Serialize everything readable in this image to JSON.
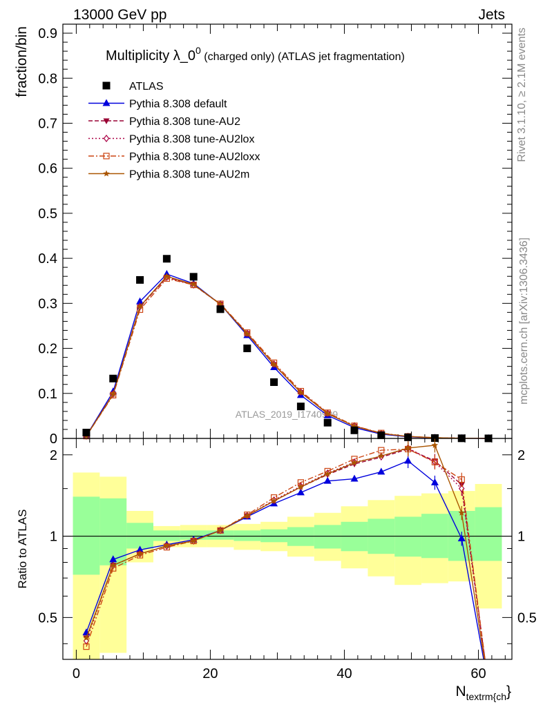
{
  "header": {
    "left": "13000 GeV pp",
    "right": "Jets"
  },
  "side": {
    "top": "Rivet 3.1.10, ≥ 2.1M events",
    "bottom": "mcplots.cern.ch [arXiv:1306.3436]"
  },
  "watermark": "ATLAS_2019_I1740909",
  "colors": {
    "atlas": "#000000",
    "default": "#0000dd",
    "au2": "#990033",
    "au2lox": "#aa0044",
    "au2loxx": "#cc4411",
    "au2m": "#aa5500",
    "band_inner": "#99ff99",
    "band_outer": "#ffff99"
  },
  "chart_data": [
    {
      "type": "scatter",
      "title": "Multiplicity λ_0",
      "title_sup": "0",
      "title_rest": " (charged only) (ATLAS jet fragmentation)",
      "ylabel": "fraction/bin",
      "ylim": [
        0,
        0.92
      ],
      "yticks": [
        "0",
        "0.1",
        "0.2",
        "0.3",
        "0.4",
        "0.5",
        "0.6",
        "0.7",
        "0.8",
        "0.9"
      ],
      "x": [
        1.5,
        5.5,
        9.5,
        13.5,
        17.5,
        21.5,
        25.5,
        29.5,
        33.5,
        37.5,
        41.5,
        45.5,
        49.5,
        53.5,
        57.5,
        61.5
      ],
      "legend_position": "top-left",
      "series": [
        {
          "name": "ATLAS",
          "key": "atlas",
          "values": [
            0.013,
            0.133,
            0.352,
            0.399,
            0.359,
            0.287,
            0.2,
            0.125,
            0.071,
            0.035,
            0.018,
            0.007,
            0.0025,
            0.0008,
            0.0003,
            0.0001
          ]
        },
        {
          "name": "Pythia 8.308 default",
          "key": "default",
          "values": [
            0.006,
            0.104,
            0.304,
            0.365,
            0.344,
            0.298,
            0.229,
            0.158,
            0.096,
            0.051,
            0.024,
            0.0095,
            0.0035,
            0.0011,
            0.0003,
            0.0001
          ]
        },
        {
          "name": "Pythia 8.308 tune-AU2",
          "key": "au2",
          "values": [
            0.0055,
            0.098,
            0.292,
            0.358,
            0.341,
            0.298,
            0.233,
            0.164,
            0.102,
            0.055,
            0.027,
            0.011,
            0.0043,
            0.0015,
            0.0004,
            0.0001
          ]
        },
        {
          "name": "Pythia 8.308 tune-AU2lox",
          "key": "au2lox",
          "values": [
            0.0055,
            0.099,
            0.293,
            0.358,
            0.341,
            0.298,
            0.233,
            0.165,
            0.103,
            0.056,
            0.028,
            0.011,
            0.0044,
            0.0015,
            0.0004,
            0.0001
          ]
        },
        {
          "name": "Pythia 8.308 tune-AU2loxx",
          "key": "au2loxx",
          "values": [
            0.0052,
            0.096,
            0.286,
            0.355,
            0.341,
            0.299,
            0.235,
            0.168,
            0.105,
            0.057,
            0.028,
            0.012,
            0.0045,
            0.0015,
            0.0004,
            0.0001
          ]
        },
        {
          "name": "Pythia 8.308 tune-AU2m",
          "key": "au2m",
          "values": [
            0.0055,
            0.098,
            0.293,
            0.36,
            0.342,
            0.298,
            0.232,
            0.164,
            0.102,
            0.055,
            0.027,
            0.011,
            0.0043,
            0.0015,
            0.0004,
            0.0001
          ]
        }
      ]
    },
    {
      "type": "line",
      "ylabel": "Ratio to ATLAS",
      "xlabel": "N",
      "xlabel_sub": "textrm{ch",
      "xlabel_tail": "}",
      "ylim": [
        0.35,
        2.3
      ],
      "xlim": [
        -2,
        65
      ],
      "yticks": [
        "0.5",
        "1",
        "2"
      ],
      "xticks": [
        "0",
        "20",
        "40",
        "60"
      ],
      "x": [
        1.5,
        5.5,
        9.5,
        13.5,
        17.5,
        21.5,
        25.5,
        29.5,
        33.5,
        37.5,
        41.5,
        45.5,
        49.5,
        53.5,
        57.5,
        61.5
      ],
      "bin_edges": [
        -0.5,
        3.5,
        7.5,
        11.5,
        15.5,
        19.5,
        23.5,
        27.5,
        31.5,
        35.5,
        39.5,
        43.5,
        47.5,
        51.5,
        55.5,
        59.5,
        63.5
      ],
      "band_inner": [
        [
          0.72,
          1.4
        ],
        [
          0.78,
          1.38
        ],
        [
          0.9,
          1.12
        ],
        [
          0.96,
          1.05
        ],
        [
          0.97,
          1.05
        ],
        [
          0.97,
          1.05
        ],
        [
          0.96,
          1.05
        ],
        [
          0.95,
          1.06
        ],
        [
          0.92,
          1.08
        ],
        [
          0.9,
          1.1
        ],
        [
          0.88,
          1.13
        ],
        [
          0.86,
          1.16
        ],
        [
          0.84,
          1.18
        ],
        [
          0.83,
          1.21
        ],
        [
          0.81,
          1.24
        ],
        [
          0.81,
          1.28
        ]
      ],
      "band_outer": [
        [
          0.35,
          1.72
        ],
        [
          0.37,
          1.66
        ],
        [
          0.8,
          1.24
        ],
        [
          0.91,
          1.09
        ],
        [
          0.91,
          1.1
        ],
        [
          0.91,
          1.1
        ],
        [
          0.89,
          1.11
        ],
        [
          0.88,
          1.13
        ],
        [
          0.84,
          1.18
        ],
        [
          0.81,
          1.22
        ],
        [
          0.76,
          1.29
        ],
        [
          0.71,
          1.36
        ],
        [
          0.66,
          1.41
        ],
        [
          0.67,
          1.44
        ],
        [
          0.68,
          1.47
        ],
        [
          0.54,
          1.56
        ]
      ],
      "series": [
        {
          "name": "Pythia 8.308 default",
          "key": "default",
          "values": [
            0.44,
            0.82,
            0.89,
            0.93,
            0.97,
            1.05,
            1.18,
            1.32,
            1.45,
            1.6,
            1.63,
            1.73,
            1.9,
            1.58,
            0.98,
            0.22
          ]
        },
        {
          "name": "Pythia 8.308 tune-AU2",
          "key": "au2",
          "values": [
            0.42,
            0.78,
            0.86,
            0.92,
            0.96,
            1.05,
            1.19,
            1.35,
            1.52,
            1.69,
            1.85,
            1.96,
            2.1,
            1.9,
            1.55,
            0.28
          ]
        },
        {
          "name": "Pythia 8.308 tune-AU2lox",
          "key": "au2lox",
          "values": [
            0.41,
            0.78,
            0.86,
            0.92,
            0.96,
            1.05,
            1.19,
            1.36,
            1.53,
            1.71,
            1.88,
            1.97,
            2.12,
            1.88,
            1.5,
            0.26
          ]
        },
        {
          "name": "Pythia 8.308 tune-AU2loxx",
          "key": "au2loxx",
          "values": [
            0.39,
            0.76,
            0.85,
            0.91,
            0.96,
            1.05,
            1.2,
            1.39,
            1.58,
            1.74,
            1.93,
            2.08,
            2.1,
            1.88,
            1.62,
            0.26
          ]
        },
        {
          "name": "Pythia 8.308 tune-AU2m",
          "key": "au2m",
          "values": [
            0.42,
            0.78,
            0.86,
            0.92,
            0.96,
            1.05,
            1.19,
            1.35,
            1.52,
            1.7,
            1.87,
            1.98,
            2.12,
            2.17,
            1.22,
            0.2
          ]
        }
      ]
    }
  ]
}
